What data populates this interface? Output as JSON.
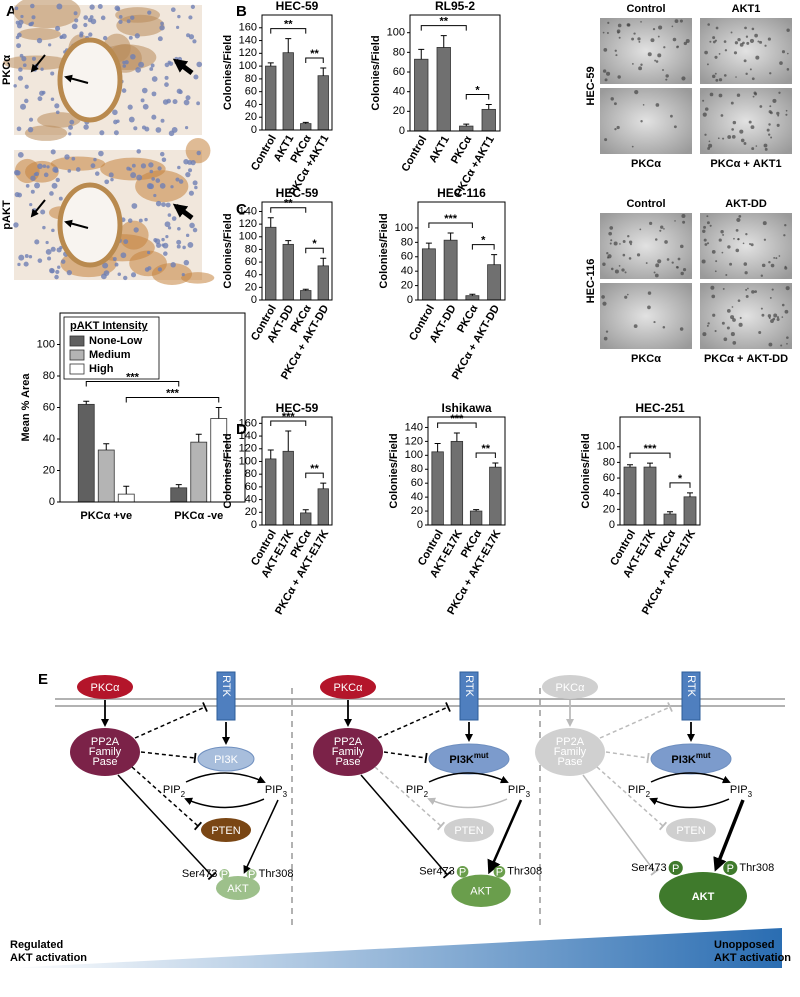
{
  "panel_labels": [
    "A",
    "B",
    "C",
    "D",
    "E"
  ],
  "panel_a": {
    "image_labels": [
      "PKCα",
      "pAKT"
    ]
  },
  "micrographs": [
    {
      "cell_line": "HEC-59",
      "labels": [
        "Control",
        "AKT1",
        "PKCα",
        "PKCα + AKT1"
      ]
    },
    {
      "cell_line": "HEC-116",
      "labels": [
        "Control",
        "AKT-DD",
        "PKCα",
        "PKCα + AKT-DD"
      ]
    }
  ],
  "chart_data": [
    {
      "type": "bar",
      "y_label": "Mean % Area",
      "legend_title": "pAKT Intensity",
      "categories": [
        "PKCα +ve",
        "PKCα -ve"
      ],
      "series": [
        {
          "name": "None-Low",
          "color": "#606060",
          "values": [
            62,
            9
          ],
          "errors": [
            2,
            2
          ]
        },
        {
          "name": "Medium",
          "color": "#b4b4b4",
          "values": [
            33,
            38
          ],
          "errors": [
            4,
            5
          ]
        },
        {
          "name": "High",
          "color": "#ffffff",
          "values": [
            5,
            53
          ],
          "errors": [
            5,
            7
          ]
        }
      ],
      "ylim": [
        0,
        120
      ],
      "yticks": [
        0,
        20,
        40,
        60,
        80,
        100
      ],
      "annotations": [
        "***",
        "***"
      ]
    },
    {
      "type": "bar",
      "title": "HEC-59",
      "y_label": "Colonies/Field",
      "color": "#707070",
      "categories": [
        "Control",
        "AKT1",
        "PKCα",
        "PKCα +AKT1"
      ],
      "values": [
        100,
        121,
        10,
        85
      ],
      "errors": [
        5,
        22,
        2,
        12
      ],
      "ylim": [
        0,
        180
      ],
      "yticks": [
        0,
        20,
        40,
        60,
        80,
        100,
        120,
        140,
        160
      ],
      "annotations": [
        "**",
        "**"
      ]
    },
    {
      "type": "bar",
      "title": "RL95-2",
      "y_label": "Colonies/Field",
      "color": "#707070",
      "categories": [
        "Control",
        "AKT1",
        "PKCα",
        "PKCα +AKT1"
      ],
      "values": [
        73,
        85,
        5,
        22
      ],
      "errors": [
        10,
        12,
        2,
        5
      ],
      "ylim": [
        0,
        118
      ],
      "yticks": [
        0,
        20,
        40,
        60,
        80,
        100
      ],
      "annotations": [
        "**",
        "*"
      ]
    },
    {
      "type": "bar",
      "title": "HEC-59",
      "y_label": "Colonies/Field",
      "color": "#707070",
      "categories": [
        "Control",
        "AKT-DD",
        "PKCα",
        "PKCα + AKT-DD"
      ],
      "values": [
        115,
        88,
        15,
        54
      ],
      "errors": [
        15,
        6,
        2,
        12
      ],
      "ylim": [
        0,
        155
      ],
      "yticks": [
        0,
        20,
        40,
        60,
        80,
        100,
        120,
        140
      ],
      "annotations": [
        "**",
        "*"
      ]
    },
    {
      "type": "bar",
      "title": "HEC-116",
      "y_label": "Colonies/Field",
      "color": "#707070",
      "categories": [
        "Control",
        "AKT-DD",
        "PKCα",
        "PKCα + AKT-DD"
      ],
      "values": [
        71,
        83,
        6,
        49
      ],
      "errors": [
        8,
        10,
        2,
        14
      ],
      "ylim": [
        0,
        136
      ],
      "yticks": [
        0,
        20,
        40,
        60,
        80,
        100
      ],
      "annotations": [
        "***",
        "*"
      ]
    },
    {
      "type": "bar",
      "title": "HEC-59",
      "y_label": "Colonies/Field",
      "color": "#707070",
      "categories": [
        "Control",
        "AKT-E17K",
        "PKCα",
        "PKCα + AKT-E17K"
      ],
      "values": [
        104,
        116,
        19,
        57
      ],
      "errors": [
        14,
        32,
        5,
        9
      ],
      "ylim": [
        0,
        170
      ],
      "yticks": [
        0,
        20,
        40,
        60,
        80,
        100,
        120,
        140,
        160
      ],
      "annotations": [
        "***",
        "**"
      ]
    },
    {
      "type": "bar",
      "title": "Ishikawa",
      "y_label": "Colonies/Field",
      "color": "#707070",
      "categories": [
        "Control",
        "AKT-E17K",
        "PKCα",
        "PKCα + AKT-E17K"
      ],
      "values": [
        105,
        120,
        20,
        83
      ],
      "errors": [
        12,
        12,
        2,
        6
      ],
      "ylim": [
        0,
        155
      ],
      "yticks": [
        0,
        20,
        40,
        60,
        80,
        100,
        120,
        140
      ],
      "annotations": [
        "***",
        "**"
      ]
    },
    {
      "type": "bar",
      "title": "HEC-251",
      "y_label": "Colonies/Field",
      "color": "#707070",
      "categories": [
        "Control",
        "AKT-E17K",
        "PKCα",
        "PKCα + AKT-E17K"
      ],
      "values": [
        74,
        74,
        14,
        36
      ],
      "errors": [
        3,
        5,
        3,
        5
      ],
      "ylim": [
        0,
        138
      ],
      "yticks": [
        0,
        20,
        40,
        60,
        80,
        100
      ],
      "annotations": [
        "***",
        "*"
      ]
    }
  ],
  "diagram": {
    "panels": [
      {
        "pkc": "PKCα",
        "rtk": "RTK",
        "pase": [
          "PP2A",
          "Family",
          "Pase"
        ],
        "pi3k": {
          "base": "PI3K"
        },
        "pip2": {
          "base": "PIP",
          "sub": "2"
        },
        "pip3": {
          "base": "PIP",
          "sub": "3"
        },
        "pten": "PTEN",
        "akt": "AKT",
        "ser": "Ser473",
        "thr": "Thr308",
        "phospho": [
          "P",
          "P"
        ]
      },
      {
        "pkc": "PKCα",
        "rtk": "RTK",
        "pase": [
          "PP2A",
          "Family",
          "Pase"
        ],
        "pi3k": {
          "base": "PI3K",
          "sup": "mut"
        },
        "pip2": {
          "base": "PIP",
          "sub": "2"
        },
        "pip3": {
          "base": "PIP",
          "sub": "3"
        },
        "pten": "PTEN",
        "akt": "AKT",
        "ser": "Ser473",
        "thr": "Thr308",
        "phospho": [
          "P",
          "P"
        ]
      },
      {
        "pkc": "PKCα",
        "rtk": "RTK",
        "pase": [
          "PP2A",
          "Family",
          "Pase"
        ],
        "pi3k": {
          "base": "PI3K",
          "sup": "mut"
        },
        "pip2": {
          "base": "PIP",
          "sub": "2"
        },
        "pip3": {
          "base": "PIP",
          "sub": "3"
        },
        "pten": "PTEN",
        "akt": "AKT",
        "ser": "Ser473",
        "thr": "Thr308",
        "phospho": [
          "P",
          "P"
        ]
      }
    ],
    "left_label": [
      "Regulated",
      "AKT activation"
    ],
    "right_label": [
      "Unopposed",
      "AKT activation"
    ]
  }
}
